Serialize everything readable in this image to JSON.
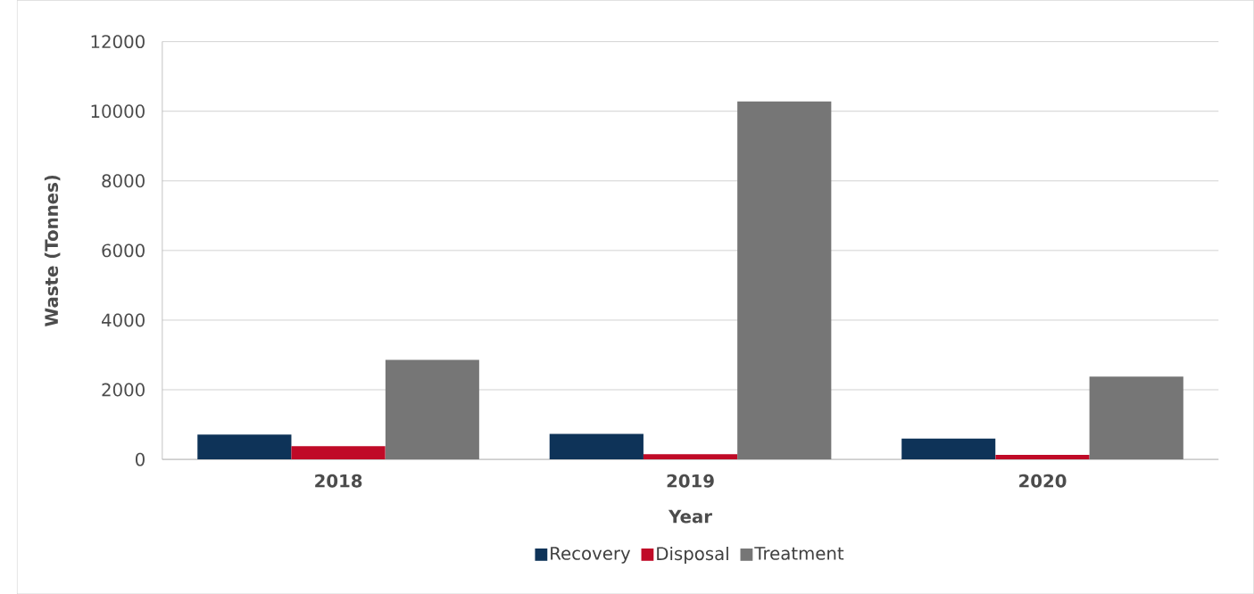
{
  "chart_data": {
    "type": "bar",
    "xlabel": "Year",
    "ylabel": "Waste (Tonnes)",
    "categories": [
      "2018",
      "2019",
      "2020"
    ],
    "series": [
      {
        "name": "Recovery",
        "color": "#0e3358",
        "values": [
          710,
          730,
          600
        ]
      },
      {
        "name": "Disposal",
        "color": "#c00a27",
        "values": [
          380,
          150,
          130
        ]
      },
      {
        "name": "Treatment",
        "color": "#767676",
        "values": [
          2860,
          10280,
          2380
        ]
      }
    ],
    "ylim": [
      0,
      12000
    ],
    "yticks": [
      0,
      2000,
      4000,
      6000,
      8000,
      10000,
      12000
    ],
    "grid": "y",
    "legend": "bottom"
  }
}
